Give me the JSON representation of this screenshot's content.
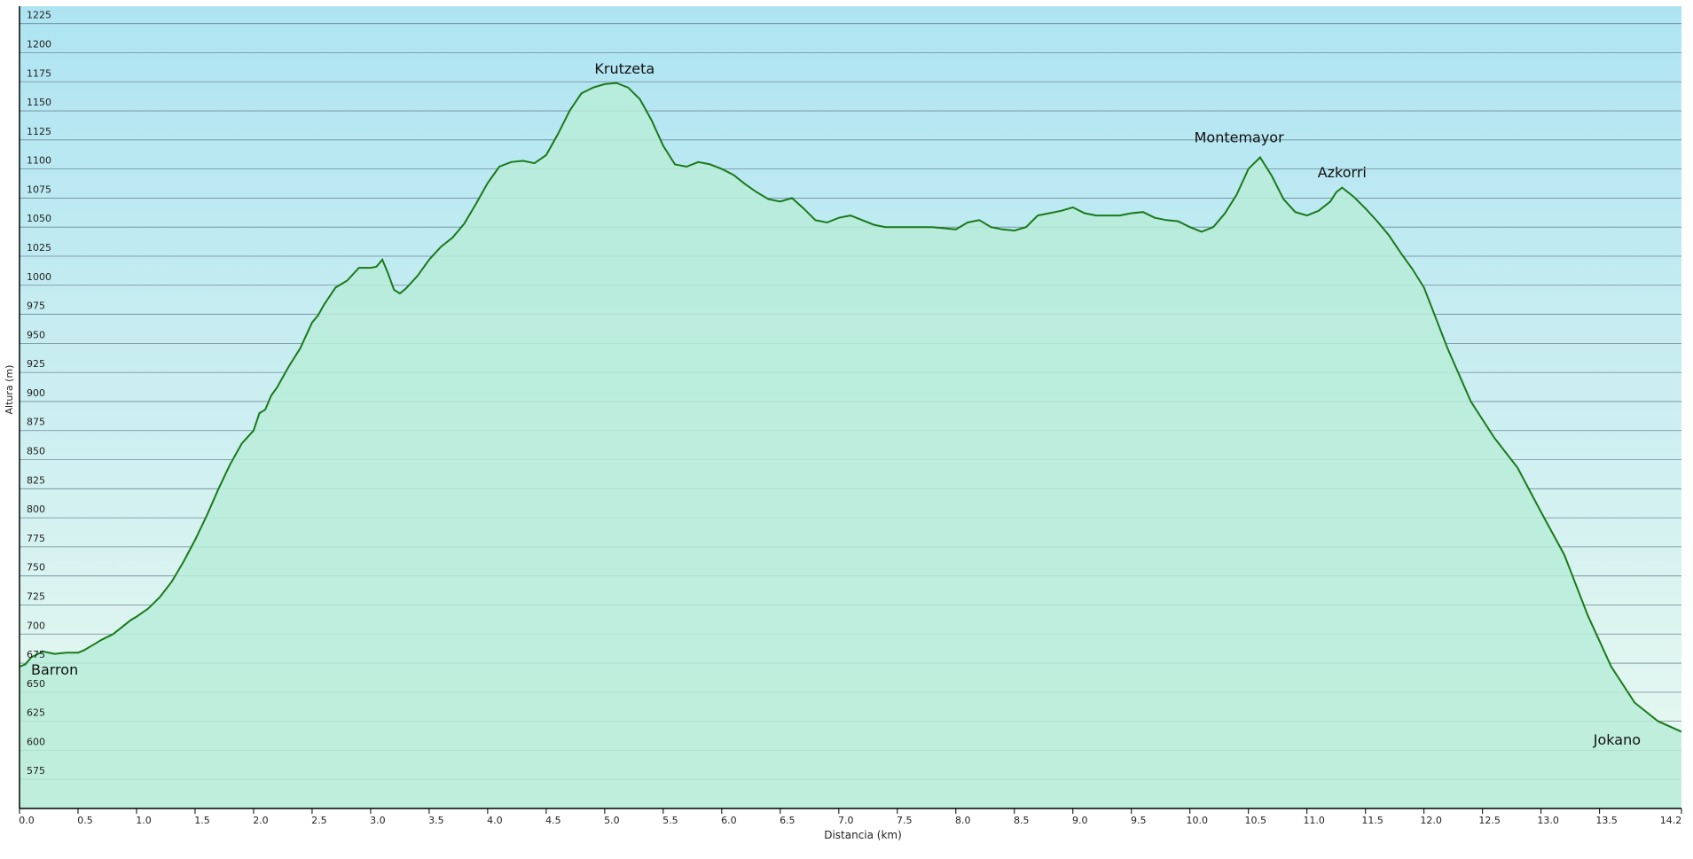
{
  "chart_data": {
    "type": "area",
    "title": "",
    "xlabel": "Distancia  (km)",
    "ylabel": "Altura (m)",
    "xlim": [
      0,
      14.2
    ],
    "ylim": [
      550,
      1240
    ],
    "grid": true,
    "x_ticks": [
      0.0,
      0.5,
      1.0,
      1.5,
      2.0,
      2.5,
      3.0,
      3.5,
      4.0,
      4.5,
      5.0,
      5.5,
      6.0,
      6.5,
      7.0,
      7.5,
      8.0,
      8.5,
      9.0,
      9.5,
      10.0,
      10.5,
      11.0,
      11.5,
      12.0,
      12.5,
      13.0,
      13.5,
      14.2
    ],
    "x_tick_labels": [
      "0.0",
      "0.5",
      "1.0",
      "1.5",
      "2.0",
      "2.5",
      "3.0",
      "3.5",
      "4.0",
      "4.5",
      "5.0",
      "5.5",
      "6.0",
      "6.5",
      "7.0",
      "7.5",
      "8.0",
      "8.5",
      "9.0",
      "9.5",
      "10.0",
      "10.5",
      "11.0",
      "11.5",
      "12.0",
      "12.5",
      "13.0",
      "13.5",
      "14.2"
    ],
    "y_ticks": [
      575,
      600,
      625,
      650,
      675,
      700,
      725,
      750,
      775,
      800,
      825,
      850,
      875,
      900,
      925,
      950,
      975,
      1000,
      1025,
      1050,
      1075,
      1100,
      1125,
      1150,
      1175,
      1200,
      1225
    ],
    "colors": {
      "line": "#1a7a1a",
      "fill": "#b8ecd9",
      "sky_top": "#aee4f2",
      "sky_bottom": "#eaf9f0",
      "grid": "#6d8a96"
    },
    "series": [
      {
        "name": "",
        "x": [
          0.0,
          0.05,
          0.1,
          0.2,
          0.3,
          0.4,
          0.5,
          0.55,
          0.6,
          0.65,
          0.7,
          0.8,
          0.9,
          0.95,
          1.0,
          1.1,
          1.2,
          1.3,
          1.4,
          1.5,
          1.6,
          1.7,
          1.8,
          1.9,
          2.0,
          2.05,
          2.1,
          2.15,
          2.2,
          2.3,
          2.4,
          2.5,
          2.55,
          2.6,
          2.7,
          2.8,
          2.9,
          3.0,
          3.05,
          3.1,
          3.15,
          3.2,
          3.25,
          3.3,
          3.4,
          3.5,
          3.6,
          3.7,
          3.8,
          3.9,
          4.0,
          4.1,
          4.2,
          4.3,
          4.4,
          4.5,
          4.6,
          4.7,
          4.8,
          4.9,
          5.0,
          5.1,
          5.2,
          5.3,
          5.4,
          5.5,
          5.6,
          5.7,
          5.8,
          5.9,
          6.0,
          6.1,
          6.2,
          6.3,
          6.4,
          6.5,
          6.6,
          6.7,
          6.8,
          6.9,
          7.0,
          7.1,
          7.2,
          7.3,
          7.4,
          7.5,
          7.6,
          7.7,
          7.8,
          7.9,
          8.0,
          8.1,
          8.2,
          8.3,
          8.4,
          8.5,
          8.6,
          8.7,
          8.8,
          8.9,
          9.0,
          9.1,
          9.2,
          9.3,
          9.4,
          9.5,
          9.6,
          9.7,
          9.8,
          9.9,
          10.0,
          10.1,
          10.2,
          10.3,
          10.4,
          10.5,
          10.6,
          10.7,
          10.8,
          10.9,
          11.0,
          11.1,
          11.2,
          11.25,
          11.3,
          11.4,
          11.5,
          11.6,
          11.7,
          11.8,
          11.9,
          12.0,
          12.2,
          12.4,
          12.6,
          12.8,
          13.0,
          13.2,
          13.4,
          13.6,
          13.8,
          14.0,
          14.2
        ],
        "y": [
          672,
          674,
          680,
          685,
          683,
          684,
          684,
          686,
          689,
          692,
          695,
          700,
          708,
          712,
          715,
          722,
          732,
          745,
          762,
          781,
          802,
          825,
          846,
          864,
          875,
          890,
          893,
          905,
          912,
          930,
          946,
          968,
          974,
          983,
          998,
          1004,
          1015,
          1015,
          1016,
          1022,
          1010,
          996,
          993,
          997,
          1008,
          1022,
          1033,
          1041,
          1053,
          1070,
          1088,
          1102,
          1106,
          1107,
          1105,
          1112,
          1130,
          1150,
          1165,
          1170,
          1173,
          1174,
          1170,
          1160,
          1142,
          1120,
          1104,
          1102,
          1106,
          1104,
          1100,
          1095,
          1087,
          1080,
          1074,
          1072,
          1075,
          1066,
          1056,
          1054,
          1058,
          1060,
          1056,
          1052,
          1050,
          1050,
          1050,
          1050,
          1050,
          1049,
          1048,
          1054,
          1056,
          1050,
          1048,
          1047,
          1050,
          1060,
          1062,
          1064,
          1067,
          1062,
          1060,
          1060,
          1060,
          1062,
          1063,
          1058,
          1056,
          1055,
          1050,
          1046,
          1050,
          1062,
          1078,
          1100,
          1110,
          1094,
          1074,
          1063,
          1060,
          1064,
          1072,
          1080,
          1084,
          1076,
          1066,
          1055,
          1043,
          1028,
          1014,
          998,
          946,
          900,
          869,
          843,
          805,
          768,
          716,
          672,
          641,
          625,
          616
        ]
      }
    ],
    "annotations": [
      {
        "text": "Barron",
        "x": 0.3,
        "y": 665
      },
      {
        "text": "Krutzeta",
        "x": 5.17,
        "y": 1182
      },
      {
        "text": "Montemayor",
        "x": 10.42,
        "y": 1123
      },
      {
        "text": "Azkorri",
        "x": 11.3,
        "y": 1093
      },
      {
        "text": "Jokano",
        "x": 13.65,
        "y": 605
      }
    ]
  }
}
